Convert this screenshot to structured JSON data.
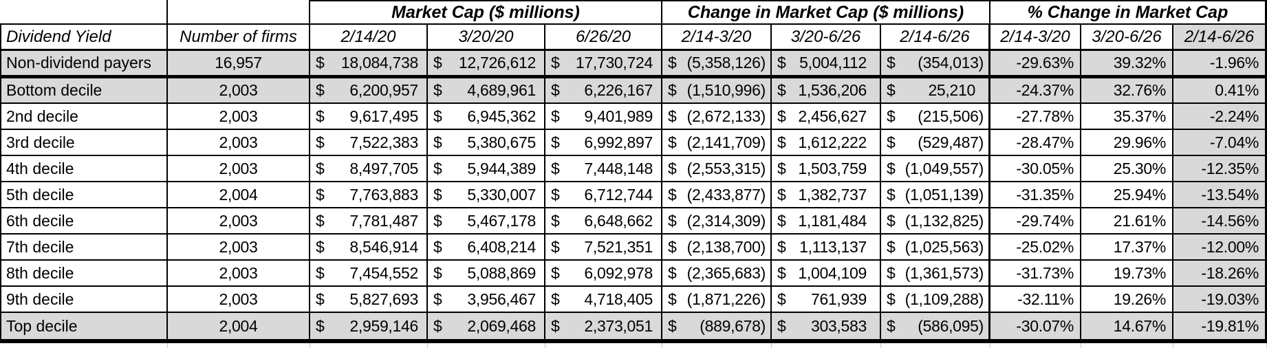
{
  "colors": {
    "row_shade": "#d9d9d9",
    "border": "#000000",
    "gridline": "#c9c9c9"
  },
  "header": {
    "groups": [
      "Market Cap ($ millions)",
      "Change in Market Cap ($ millions)",
      "% Change in Market Cap"
    ],
    "columns": [
      "Dividend Yield",
      "Number of firms",
      "2/14/20",
      "3/20/20",
      "6/26/20",
      "2/14-3/20",
      "3/20-6/26",
      "2/14-6/26",
      "2/14-3/20",
      "3/20-6/26",
      "2/14-6/26"
    ],
    "currency_symbol": "$"
  },
  "rows": [
    {
      "label": "Non-dividend payers",
      "firms": "16,957",
      "mc": [
        "18,084,738",
        "12,726,612",
        "17,730,724"
      ],
      "chg": [
        "(5,358,126)",
        "5,004,112",
        "(354,013)"
      ],
      "pct": [
        "-29.63%",
        "39.32%",
        "-1.96%"
      ],
      "shaded": true,
      "thick_bottom": true
    },
    {
      "label": "Bottom decile",
      "firms": "2,003",
      "mc": [
        "6,200,957",
        "4,689,961",
        "6,226,167"
      ],
      "chg": [
        "(1,510,996)",
        "1,536,206",
        "25,210"
      ],
      "pct": [
        "-24.37%",
        "32.76%",
        "0.41%"
      ],
      "shaded": true,
      "thick_bottom": false
    },
    {
      "label": "2nd decile",
      "firms": "2,003",
      "mc": [
        "9,617,495",
        "6,945,362",
        "9,401,989"
      ],
      "chg": [
        "(2,672,133)",
        "2,456,627",
        "(215,506)"
      ],
      "pct": [
        "-27.78%",
        "35.37%",
        "-2.24%"
      ],
      "shaded": false,
      "thick_bottom": false
    },
    {
      "label": "3rd decile",
      "firms": "2,003",
      "mc": [
        "7,522,383",
        "5,380,675",
        "6,992,897"
      ],
      "chg": [
        "(2,141,709)",
        "1,612,222",
        "(529,487)"
      ],
      "pct": [
        "-28.47%",
        "29.96%",
        "-7.04%"
      ],
      "shaded": false,
      "thick_bottom": false
    },
    {
      "label": "4th decile",
      "firms": "2,003",
      "mc": [
        "8,497,705",
        "5,944,389",
        "7,448,148"
      ],
      "chg": [
        "(2,553,315)",
        "1,503,759",
        "(1,049,557)"
      ],
      "pct": [
        "-30.05%",
        "25.30%",
        "-12.35%"
      ],
      "shaded": false,
      "thick_bottom": false
    },
    {
      "label": "5th decile",
      "firms": "2,004",
      "mc": [
        "7,763,883",
        "5,330,007",
        "6,712,744"
      ],
      "chg": [
        "(2,433,877)",
        "1,382,737",
        "(1,051,139)"
      ],
      "pct": [
        "-31.35%",
        "25.94%",
        "-13.54%"
      ],
      "shaded": false,
      "thick_bottom": false
    },
    {
      "label": "6th decile",
      "firms": "2,003",
      "mc": [
        "7,781,487",
        "5,467,178",
        "6,648,662"
      ],
      "chg": [
        "(2,314,309)",
        "1,181,484",
        "(1,132,825)"
      ],
      "pct": [
        "-29.74%",
        "21.61%",
        "-14.56%"
      ],
      "shaded": false,
      "thick_bottom": false
    },
    {
      "label": "7th decile",
      "firms": "2,003",
      "mc": [
        "8,546,914",
        "6,408,214",
        "7,521,351"
      ],
      "chg": [
        "(2,138,700)",
        "1,113,137",
        "(1,025,563)"
      ],
      "pct": [
        "-25.02%",
        "17.37%",
        "-12.00%"
      ],
      "shaded": false,
      "thick_bottom": false
    },
    {
      "label": "8th decile",
      "firms": "2,003",
      "mc": [
        "7,454,552",
        "5,088,869",
        "6,092,978"
      ],
      "chg": [
        "(2,365,683)",
        "1,004,109",
        "(1,361,573)"
      ],
      "pct": [
        "-31.73%",
        "19.73%",
        "-18.26%"
      ],
      "shaded": false,
      "thick_bottom": false
    },
    {
      "label": "9th decile",
      "firms": "2,003",
      "mc": [
        "5,827,693",
        "3,956,467",
        "4,718,405"
      ],
      "chg": [
        "(1,871,226)",
        "761,939",
        "(1,109,288)"
      ],
      "pct": [
        "-32.11%",
        "19.26%",
        "-19.03%"
      ],
      "shaded": false,
      "thick_bottom": false
    },
    {
      "label": "Top decile",
      "firms": "2,004",
      "mc": [
        "2,959,146",
        "2,069,468",
        "2,373,051"
      ],
      "chg": [
        "(889,678)",
        "303,583",
        "(586,095)"
      ],
      "pct": [
        "-30.07%",
        "14.67%",
        "-19.81%"
      ],
      "shaded": true,
      "thick_bottom": true
    }
  ]
}
